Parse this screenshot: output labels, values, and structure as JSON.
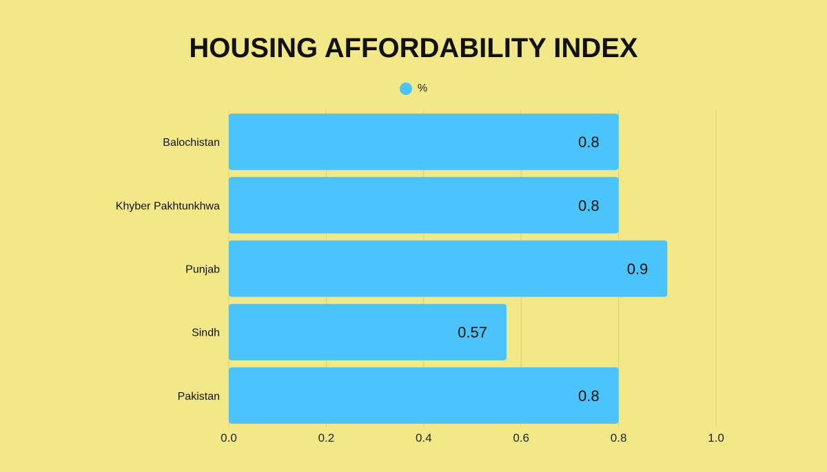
{
  "chart_data": {
    "type": "bar",
    "orientation": "horizontal",
    "title": "HOUSING AFFORDABILITY INDEX",
    "categories": [
      "Balochistan",
      "Khyber Pakhtunkhwa",
      "Punjab",
      "Sindh",
      "Pakistan"
    ],
    "series": [
      {
        "name": "%",
        "values": [
          0.8,
          0.8,
          0.9,
          0.57,
          0.8
        ],
        "value_labels": [
          "0.8",
          "0.8",
          "0.9",
          "0.57",
          "0.8"
        ]
      }
    ],
    "xlim": [
      0,
      1.0
    ],
    "x_ticks": [
      "0.0",
      "0.2",
      "0.4",
      "0.6",
      "0.8",
      "1.0"
    ],
    "xlabel": "",
    "ylabel": "",
    "grid": "vertical",
    "legend_position": "top-center"
  },
  "colors": {
    "background": "#f3e887",
    "bar": "#4bc3fb",
    "grid": "#d9cf78",
    "text": "#111111"
  }
}
